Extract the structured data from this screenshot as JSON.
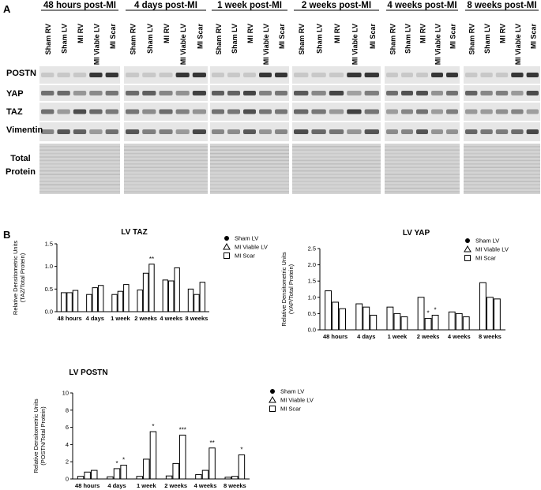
{
  "panel_labels": [
    "A",
    "B"
  ],
  "blot": {
    "timepoints": [
      "48 hours post-MI",
      "4 days post-MI",
      "1 week post-MI",
      "2 weeks post-MI",
      "4 weeks post-MI",
      "8 weeks post-MI"
    ],
    "lanes": [
      "Sham RV",
      "Sham LV",
      "MI RV",
      "MI Viable LV",
      "MI Scar"
    ],
    "rows": [
      [
        "POSTN"
      ],
      [
        "YAP"
      ],
      [
        "TAZ"
      ],
      [
        "Vimentin"
      ],
      [
        "Total",
        "Protein"
      ]
    ]
  },
  "chart_data": [
    {
      "type": "bar",
      "title": "LV TAZ",
      "ylabel": [
        "Relative Densitometric Units",
        "(TAZ/Total  Protein)"
      ],
      "categories": [
        "48 hours",
        "4 days",
        "1 week",
        "2 weeks",
        "4 weeks",
        "8 weeks"
      ],
      "ylim": [
        0,
        1.5
      ],
      "yticks": [
        {
          "value": 0,
          "label": "0.0"
        },
        {
          "value": 0.5,
          "label": "0.5"
        },
        {
          "value": 1,
          "label": "1.0"
        },
        {
          "value": 1.5,
          "label": "1.5"
        }
      ],
      "series": [
        {
          "name": "Sham LV",
          "marker": "circle",
          "color": "#000000",
          "values": [
            0.42,
            0.38,
            0.38,
            0.48,
            0.7,
            0.5
          ],
          "annotations": [
            null,
            null,
            null,
            null,
            null,
            null
          ]
        },
        {
          "name": "MI Viable LV",
          "marker": "triangle",
          "color": "#000000",
          "values": [
            0.42,
            0.53,
            0.45,
            0.85,
            0.68,
            0.38
          ],
          "annotations": [
            null,
            null,
            null,
            null,
            null,
            null
          ]
        },
        {
          "name": "MI Scar",
          "marker": "square",
          "color": "#000000",
          "values": [
            0.47,
            0.58,
            0.6,
            1.05,
            0.97,
            0.65
          ],
          "annotations": [
            null,
            null,
            null,
            "**",
            null,
            null
          ]
        }
      ]
    },
    {
      "type": "bar",
      "title": "LV YAP",
      "ylabel": [
        "Relative Densitometric Units",
        "(YAP/Total  Protein)"
      ],
      "categories": [
        "48 hours",
        "4 days",
        "1 week",
        "2 weeks",
        "4 weeks",
        "8 weeks"
      ],
      "ylim": [
        0,
        2.5
      ],
      "yticks": [
        {
          "value": 0,
          "label": "0.0"
        },
        {
          "value": 0.5,
          "label": "0.5"
        },
        {
          "value": 1,
          "label": "1.0"
        },
        {
          "value": 1.5,
          "label": "1.5"
        },
        {
          "value": 2,
          "label": "2.0"
        },
        {
          "value": 2.5,
          "label": "2.5"
        }
      ],
      "series": [
        {
          "name": "Sham LV",
          "marker": "circle",
          "color": "#000000",
          "values": [
            1.2,
            0.8,
            0.7,
            1.0,
            0.55,
            1.45
          ],
          "annotations": [
            null,
            null,
            null,
            null,
            null,
            null
          ]
        },
        {
          "name": "MI Viable LV",
          "marker": "triangle",
          "color": "#000000",
          "values": [
            0.85,
            0.7,
            0.5,
            0.35,
            0.5,
            1.0
          ],
          "annotations": [
            null,
            null,
            null,
            "*",
            null,
            null
          ]
        },
        {
          "name": "MI Scar",
          "marker": "square",
          "color": "#000000",
          "values": [
            0.65,
            0.45,
            0.4,
            0.45,
            0.4,
            0.95
          ],
          "annotations": [
            null,
            null,
            null,
            "*",
            null,
            null
          ]
        }
      ]
    },
    {
      "type": "bar",
      "title": "LV POSTN",
      "ylabel": [
        "Relative Densitometric Units",
        "(POSTN/Total  Protein)"
      ],
      "categories": [
        "48 hours",
        "4 days",
        "1 week",
        "2 weeks",
        "4 weeks",
        "8 weeks"
      ],
      "ylim": [
        0,
        10
      ],
      "yticks": [
        0,
        2,
        4,
        6,
        8,
        10
      ],
      "series": [
        {
          "name": "Sham LV",
          "marker": "circle",
          "color": "#000000",
          "values": [
            0.3,
            0.25,
            0.3,
            0.35,
            0.5,
            0.2
          ],
          "annotations": [
            null,
            null,
            null,
            null,
            null,
            null
          ]
        },
        {
          "name": "MI Viable LV",
          "marker": "triangle",
          "color": "#000000",
          "values": [
            0.8,
            1.2,
            2.3,
            1.8,
            1.0,
            0.3
          ],
          "annotations": [
            null,
            "*",
            null,
            null,
            null,
            null
          ]
        },
        {
          "name": "MI Scar",
          "marker": "square",
          "color": "#000000",
          "values": [
            1.0,
            1.6,
            5.5,
            5.1,
            3.6,
            2.8
          ],
          "annotations": [
            null,
            "*",
            "*",
            "***",
            "**",
            "*"
          ]
        }
      ]
    }
  ]
}
